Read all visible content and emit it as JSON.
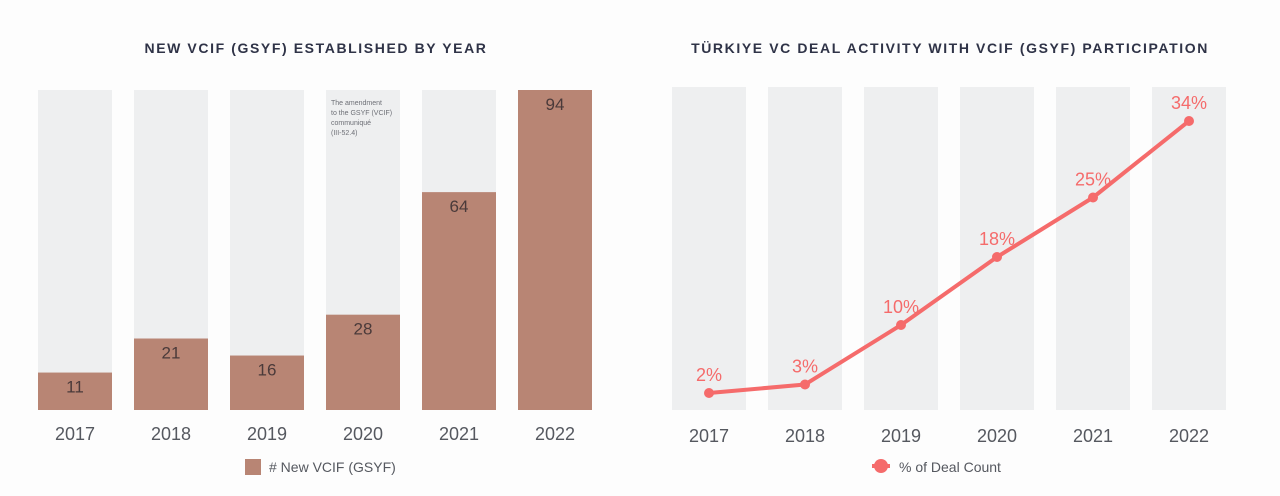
{
  "colors": {
    "bar": "#b88574",
    "track": "#eeeff0",
    "line": "#f56b6b",
    "title": "#2f3347"
  },
  "chart_data": [
    {
      "type": "bar",
      "title": "NEW VCIF (GSYF) ESTABLISHED BY YEAR",
      "categories": [
        "2017",
        "2018",
        "2019",
        "2020",
        "2021",
        "2022"
      ],
      "series": [
        {
          "name": "# New VCIF (GSYF)",
          "values": [
            11,
            21,
            16,
            28,
            64,
            94
          ]
        }
      ],
      "ylim": [
        0,
        94
      ],
      "grid": false,
      "legend": "bottom-center",
      "annotations": [
        {
          "category": "2020",
          "lines": [
            "The amendment",
            "to the GSYF (VCIF)",
            "communiqué",
            "(III-52.4)"
          ]
        }
      ]
    },
    {
      "type": "line",
      "title": "TÜRKIYE VC DEAL ACTIVITY WITH VCIF (GSYF) PARTICIPATION",
      "categories": [
        "2017",
        "2018",
        "2019",
        "2020",
        "2021",
        "2022"
      ],
      "series": [
        {
          "name": "% of Deal Count",
          "values": [
            2,
            3,
            10,
            18,
            25,
            34
          ],
          "labels": [
            "2%",
            "3%",
            "10%",
            "18%",
            "25%",
            "34%"
          ]
        }
      ],
      "ylim": [
        0,
        38
      ],
      "grid": false,
      "legend": "bottom-center"
    }
  ]
}
